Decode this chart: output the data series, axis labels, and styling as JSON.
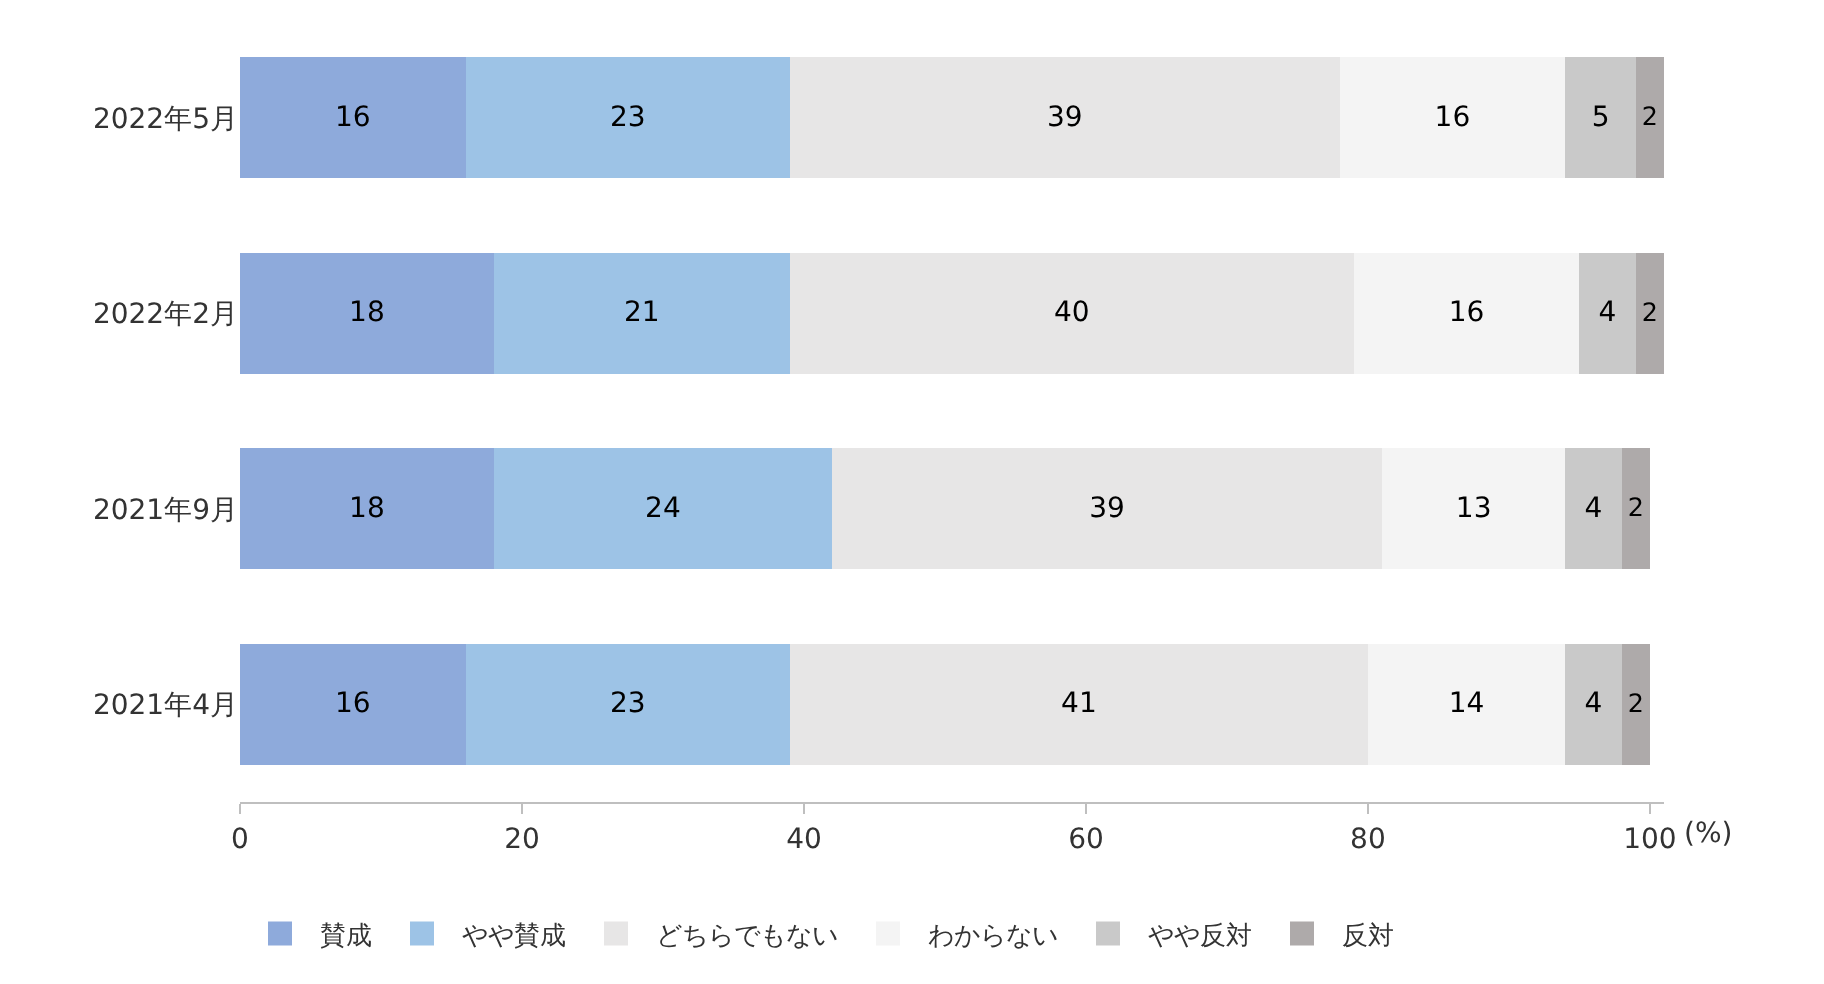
{
  "chart_data": {
    "type": "bar",
    "orientation": "horizontal",
    "stacked": true,
    "data_labels": true,
    "legend": "bottom",
    "categories": [
      "2022年5月",
      "2022年2月",
      "2021年9月",
      "2021年4月"
    ],
    "xlabel": "(%)",
    "xlim": [
      0,
      101
    ],
    "xticks": [
      0,
      20,
      40,
      60,
      80,
      100
    ],
    "series": [
      {
        "name": "賛成",
        "color": "#8eaadb",
        "values": [
          16,
          18,
          18,
          16
        ]
      },
      {
        "name": "やや賛成",
        "color": "#9dc3e6",
        "values": [
          23,
          21,
          24,
          23
        ]
      },
      {
        "name": "どちらでもない",
        "color": "#e7e6e6",
        "values": [
          39,
          40,
          39,
          41
        ]
      },
      {
        "name": "わからない",
        "color": "#f4f4f4",
        "values": [
          16,
          16,
          13,
          14
        ]
      },
      {
        "name": "やや反対",
        "color": "#c9c9c9",
        "values": [
          5,
          4,
          4,
          4
        ]
      },
      {
        "name": "反対",
        "color": "#aeaaaa",
        "values": [
          2,
          2,
          2,
          2
        ]
      }
    ]
  }
}
